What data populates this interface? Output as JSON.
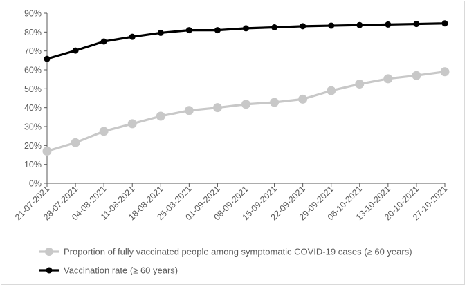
{
  "chart_data": {
    "type": "line",
    "title": "",
    "xlabel": "",
    "ylabel": "",
    "categories": [
      "21-07-2021",
      "28-07-2021",
      "04-08-2021",
      "11-08-2021",
      "18-08-2021",
      "25-08-2021",
      "01-09-2021",
      "08-09-2021",
      "15-09-2021",
      "22-09-2021",
      "29-09-2021",
      "06-10-2021",
      "13-10-2021",
      "20-10-2021",
      "27-10-2021"
    ],
    "ylim": [
      0,
      90
    ],
    "yticks": [
      "0%",
      "10%",
      "20%",
      "30%",
      "40%",
      "50%",
      "60%",
      "70%",
      "80%",
      "90%"
    ],
    "grid": false,
    "legend_position": "bottom",
    "series": [
      {
        "name": "Proportion of fully vaccinated people among symptomatic COVID-19 cases (≥ 60 years)",
        "color": "#c8c8c8",
        "values": [
          17,
          21.5,
          27.5,
          31.5,
          35.5,
          38.5,
          40,
          41.8,
          42.8,
          44.5,
          49,
          52.5,
          55.3,
          57,
          59
        ]
      },
      {
        "name": "Vaccination rate (≥ 60 years)",
        "color": "#000000",
        "values": [
          65.8,
          70.2,
          75,
          77.5,
          79.6,
          81,
          81,
          82,
          82.5,
          83.1,
          83.4,
          83.7,
          84,
          84.3,
          84.6
        ]
      }
    ]
  }
}
